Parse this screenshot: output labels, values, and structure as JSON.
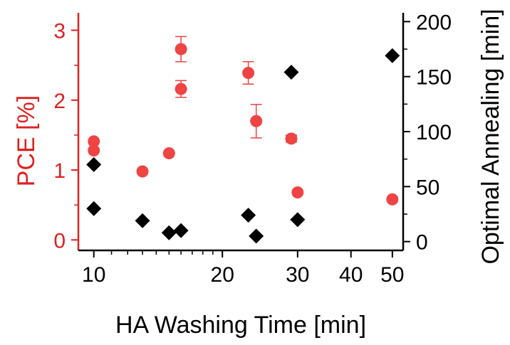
{
  "chart_data": {
    "type": "scatter",
    "title": "",
    "xlabel": "HA Washing Time [min]",
    "ylabel": "PCE [%]",
    "y2label": "Optimal Annealing [min]",
    "x_scale": "log",
    "xlim": [
      9.2,
      53
    ],
    "ylim": [
      -0.15,
      3.25
    ],
    "y2lim": [
      -8,
      208
    ],
    "x_ticks": [
      10,
      20,
      30,
      40,
      50
    ],
    "x_tick_labels": [
      "10",
      "20",
      "30",
      "40",
      "50"
    ],
    "y_ticks": [
      0,
      1,
      2,
      3
    ],
    "y_tick_labels": [
      "0",
      "1",
      "2",
      "3"
    ],
    "y2_ticks": [
      0,
      50,
      100,
      150,
      200
    ],
    "y2_tick_labels": [
      "0",
      "50",
      "100",
      "150",
      "200"
    ],
    "grid": false,
    "legend": "none",
    "colors": {
      "pce": "#ee4444",
      "pce_axis": "#dd2222",
      "annealing": "#000000",
      "axis": "#000000"
    },
    "series": [
      {
        "axis": "left",
        "marker": "circle",
        "x": [
          10,
          10,
          13,
          15,
          16,
          16,
          23,
          24,
          29,
          30,
          50
        ],
        "y": [
          1.41,
          1.28,
          0.98,
          1.24,
          2.73,
          2.16,
          2.39,
          1.7,
          1.45,
          0.68,
          0.58
        ],
        "err": [
          0.0,
          0.0,
          0.0,
          0.0,
          0.18,
          0.12,
          0.16,
          0.24,
          0.05,
          0.0,
          0.0
        ]
      },
      {
        "axis": "right",
        "marker": "diamond",
        "x": [
          10,
          10,
          13,
          15,
          16,
          23,
          24,
          29,
          30,
          50
        ],
        "y": [
          70,
          30,
          19,
          8,
          10,
          24,
          5,
          154,
          20,
          169
        ]
      }
    ]
  }
}
